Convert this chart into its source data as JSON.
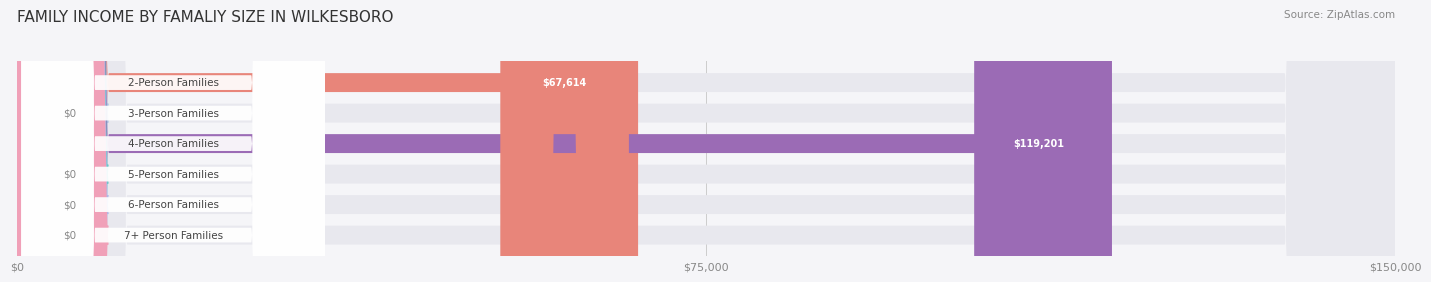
{
  "title": "FAMILY INCOME BY FAMALIY SIZE IN WILKESBORO",
  "source": "Source: ZipAtlas.com",
  "categories": [
    "2-Person Families",
    "3-Person Families",
    "4-Person Families",
    "5-Person Families",
    "6-Person Families",
    "7+ Person Families"
  ],
  "values": [
    67614,
    0,
    119201,
    0,
    0,
    0
  ],
  "bar_colors": [
    "#e8857a",
    "#a8bfe0",
    "#9b6bb5",
    "#6bc8c8",
    "#b0b8e8",
    "#f0a0b8"
  ],
  "value_labels": [
    "$67,614",
    "$0",
    "$119,201",
    "$0",
    "$0",
    "$0"
  ],
  "xlim": [
    0,
    150000
  ],
  "xticks": [
    0,
    75000,
    150000
  ],
  "xticklabels": [
    "$0",
    "$75,000",
    "$150,000"
  ],
  "background_color": "#f5f5f8",
  "bar_bg_color": "#e8e8ee",
  "title_fontsize": 11,
  "bar_height": 0.62,
  "figsize": [
    14.06,
    3.05
  ]
}
